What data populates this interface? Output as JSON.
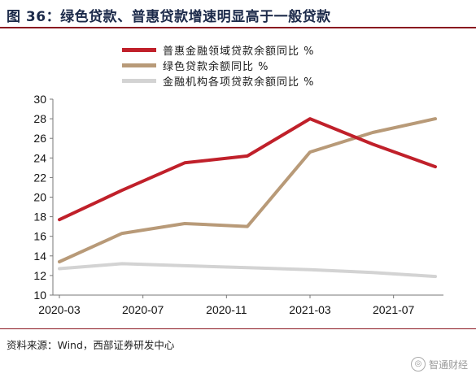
{
  "title": "图 36：绿色贷款、普惠贷款增速明显高于一般贷款",
  "source": "资料来源：Wind，西部证券研发中心",
  "watermark": "智通财经",
  "chart_data": {
    "type": "line",
    "title": "图 36：绿色贷款、普惠贷款增速明显高于一般贷款",
    "xlabel": "",
    "ylabel": "",
    "ylim": [
      10,
      30
    ],
    "yticks": [
      10,
      12,
      14,
      16,
      18,
      20,
      22,
      24,
      26,
      28,
      30
    ],
    "xticks": [
      "2020-03",
      "2020-07",
      "2020-11",
      "2021-03",
      "2021-07"
    ],
    "x": [
      "2020-03",
      "2020-06",
      "2020-09",
      "2020-12",
      "2021-03",
      "2021-06",
      "2021-09"
    ],
    "legend_position": "top",
    "grid": false,
    "series": [
      {
        "name": "普惠金融领域贷款余额同比 %",
        "color": "#c0202a",
        "values": [
          17.7,
          20.7,
          23.5,
          24.2,
          28.0,
          25.4,
          23.1
        ]
      },
      {
        "name": "绿色贷款余额同比 %",
        "color": "#b89a78",
        "values": [
          13.4,
          16.3,
          17.3,
          17.0,
          24.6,
          26.6,
          28.0
        ]
      },
      {
        "name": "金融机构各项贷款余额同比 %",
        "color": "#d3d3d3",
        "values": [
          12.7,
          13.2,
          13.0,
          12.8,
          12.6,
          12.3,
          11.9
        ]
      }
    ]
  }
}
